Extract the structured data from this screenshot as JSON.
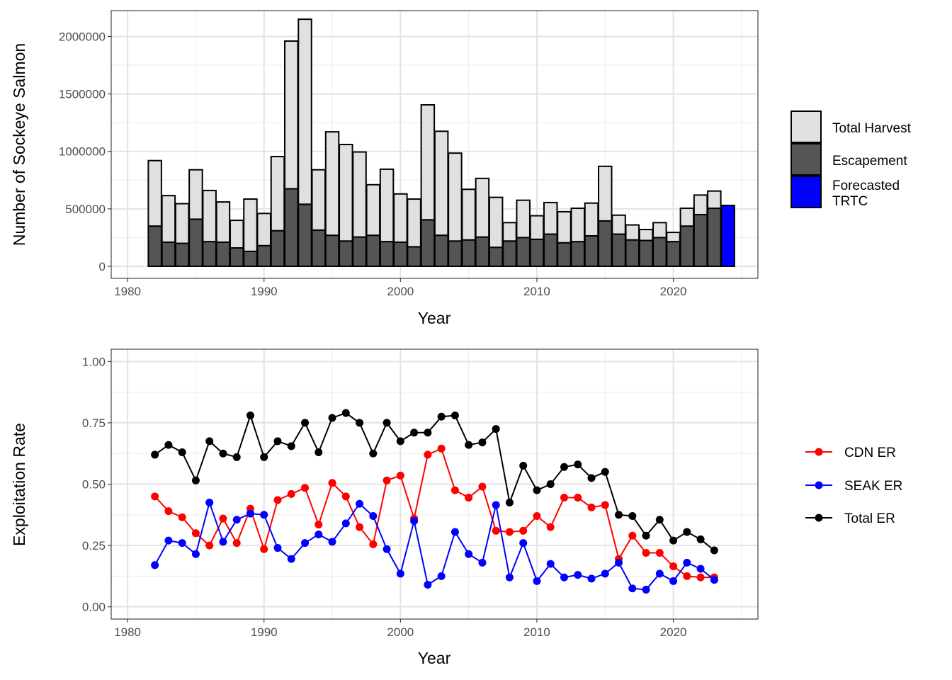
{
  "chart_data": [
    {
      "type": "bar",
      "stacked": true,
      "xlabel": "Year",
      "ylabel": "Number of Sockeye Salmon",
      "xlim": [
        1978.8,
        2026.2
      ],
      "ylim": [
        -105000,
        2225000
      ],
      "x_ticks": [
        1980,
        1990,
        2000,
        2010,
        2020
      ],
      "x_tick_labels": [
        "1980",
        "1990",
        "2000",
        "2010",
        "2020"
      ],
      "y_ticks": [
        0,
        500000,
        1000000,
        1500000,
        2000000
      ],
      "y_tick_labels": [
        "0",
        "500000",
        "1000000",
        "1500000",
        "2000000"
      ],
      "grid": true,
      "legend_position": "right",
      "categories": [
        1982,
        1983,
        1984,
        1985,
        1986,
        1987,
        1988,
        1989,
        1990,
        1991,
        1992,
        1993,
        1994,
        1995,
        1996,
        1997,
        1998,
        1999,
        2000,
        2001,
        2002,
        2003,
        2004,
        2005,
        2006,
        2007,
        2008,
        2009,
        2010,
        2011,
        2012,
        2013,
        2014,
        2015,
        2016,
        2017,
        2018,
        2019,
        2020,
        2021,
        2022,
        2023,
        2024
      ],
      "series": [
        {
          "name": "Escapement",
          "color": "#555555",
          "values": [
            350000,
            210000,
            200000,
            410000,
            215000,
            210000,
            160000,
            130000,
            180000,
            310000,
            675000,
            540000,
            315000,
            270000,
            220000,
            255000,
            270000,
            215000,
            210000,
            170000,
            405000,
            270000,
            220000,
            230000,
            255000,
            165000,
            220000,
            250000,
            235000,
            280000,
            205000,
            215000,
            265000,
            395000,
            280000,
            230000,
            225000,
            250000,
            215000,
            350000,
            450000,
            505000,
            0
          ]
        },
        {
          "name": "Total Harvest",
          "color": "#e0e0e0",
          "values": [
            570000,
            405000,
            345000,
            430000,
            445000,
            350000,
            240000,
            455000,
            280000,
            645000,
            1285000,
            1610000,
            525000,
            900000,
            840000,
            740000,
            440000,
            630000,
            420000,
            415000,
            1000000,
            905000,
            765000,
            440000,
            510000,
            435000,
            160000,
            325000,
            205000,
            275000,
            270000,
            290000,
            285000,
            475000,
            165000,
            130000,
            95000,
            130000,
            80000,
            155000,
            170000,
            150000,
            0
          ]
        },
        {
          "name": "Forecasted TRTC",
          "color": "#0000ff",
          "values": [
            0,
            0,
            0,
            0,
            0,
            0,
            0,
            0,
            0,
            0,
            0,
            0,
            0,
            0,
            0,
            0,
            0,
            0,
            0,
            0,
            0,
            0,
            0,
            0,
            0,
            0,
            0,
            0,
            0,
            0,
            0,
            0,
            0,
            0,
            0,
            0,
            0,
            0,
            0,
            0,
            0,
            0,
            530000
          ]
        }
      ],
      "legend": [
        {
          "label": "Total Harvest",
          "color": "#e0e0e0"
        },
        {
          "label": "Escapement",
          "color": "#555555"
        },
        {
          "label": "Forecasted\nTRTC",
          "color": "#0000ff"
        }
      ]
    },
    {
      "type": "line",
      "xlabel": "Year",
      "ylabel": "Exploitation Rate",
      "xlim": [
        1978.8,
        2026.2
      ],
      "ylim": [
        -0.05,
        1.05
      ],
      "x_ticks": [
        1980,
        1990,
        2000,
        2010,
        2020
      ],
      "x_tick_labels": [
        "1980",
        "1990",
        "2000",
        "2010",
        "2020"
      ],
      "y_ticks": [
        0,
        0.25,
        0.5,
        0.75,
        1
      ],
      "y_tick_labels": [
        "0.00",
        "0.25",
        "0.50",
        "0.75",
        "1.00"
      ],
      "grid": true,
      "legend_position": "right",
      "x": [
        1982,
        1983,
        1984,
        1985,
        1986,
        1987,
        1988,
        1989,
        1990,
        1991,
        1992,
        1993,
        1994,
        1995,
        1996,
        1997,
        1998,
        1999,
        2000,
        2001,
        2002,
        2003,
        2004,
        2005,
        2006,
        2007,
        2008,
        2009,
        2010,
        2011,
        2012,
        2013,
        2014,
        2015,
        2016,
        2017,
        2018,
        2019,
        2020,
        2021,
        2022,
        2023
      ],
      "series": [
        {
          "name": "CDN ER",
          "color": "#ff0000",
          "values": [
            0.45,
            0.39,
            0.365,
            0.3,
            0.25,
            0.36,
            0.26,
            0.4,
            0.235,
            0.435,
            0.46,
            0.485,
            0.335,
            0.505,
            0.45,
            0.325,
            0.255,
            0.515,
            0.535,
            0.36,
            0.62,
            0.645,
            0.475,
            0.445,
            0.49,
            0.31,
            0.305,
            0.31,
            0.37,
            0.325,
            0.445,
            0.445,
            0.405,
            0.415,
            0.195,
            0.29,
            0.22,
            0.22,
            0.165,
            0.125,
            0.12,
            0.12
          ]
        },
        {
          "name": "SEAK ER",
          "color": "#0000ff",
          "values": [
            0.17,
            0.27,
            0.26,
            0.215,
            0.425,
            0.265,
            0.355,
            0.38,
            0.375,
            0.24,
            0.195,
            0.26,
            0.295,
            0.265,
            0.34,
            0.42,
            0.37,
            0.235,
            0.135,
            0.35,
            0.09,
            0.125,
            0.305,
            0.215,
            0.18,
            0.415,
            0.12,
            0.26,
            0.105,
            0.175,
            0.12,
            0.13,
            0.115,
            0.135,
            0.18,
            0.075,
            0.07,
            0.135,
            0.105,
            0.18,
            0.155,
            0.11
          ]
        },
        {
          "name": "Total ER",
          "color": "#000000",
          "values": [
            0.62,
            0.66,
            0.63,
            0.515,
            0.675,
            0.625,
            0.61,
            0.78,
            0.61,
            0.675,
            0.655,
            0.75,
            0.63,
            0.77,
            0.79,
            0.75,
            0.625,
            0.75,
            0.675,
            0.71,
            0.71,
            0.775,
            0.78,
            0.66,
            0.67,
            0.725,
            0.425,
            0.575,
            0.475,
            0.5,
            0.57,
            0.58,
            0.525,
            0.55,
            0.375,
            0.37,
            0.29,
            0.355,
            0.27,
            0.305,
            0.275,
            0.23
          ]
        }
      ],
      "legend": [
        {
          "label": "CDN ER",
          "color": "#ff0000"
        },
        {
          "label": "SEAK ER",
          "color": "#0000ff"
        },
        {
          "label": "Total ER",
          "color": "#000000"
        }
      ]
    }
  ]
}
